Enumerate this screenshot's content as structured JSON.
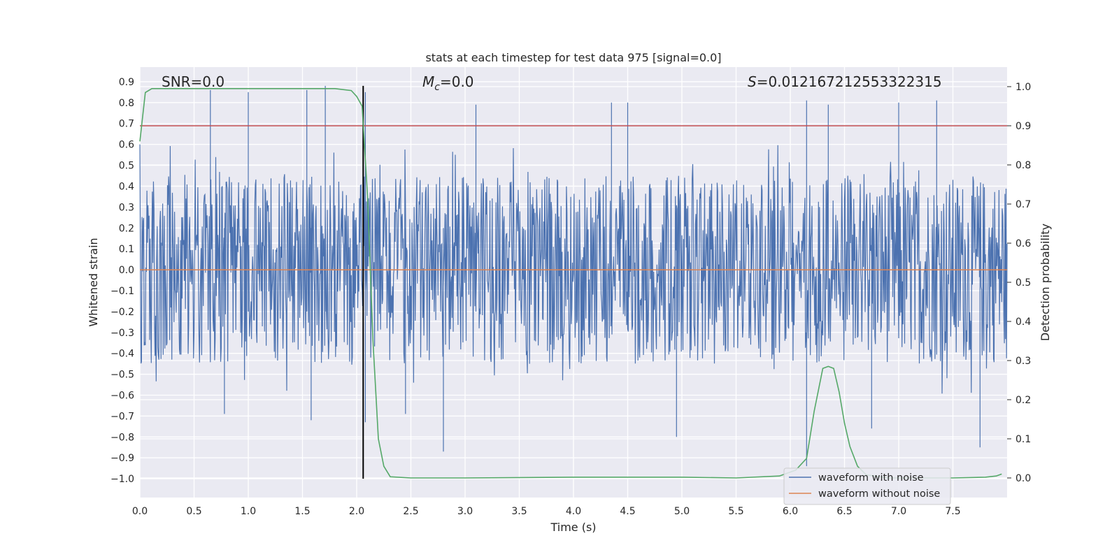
{
  "chart_data": {
    "type": "line",
    "title": "stats at each timestep for test data 975 [signal=0.0]",
    "xlabel": "Time (s)",
    "ylabel_left": "Whitened strain",
    "ylabel_right": "Detection probability",
    "xlim": [
      0.0,
      8.0
    ],
    "ylim_left": [
      -1.09,
      0.97
    ],
    "ylim_right": [
      -0.05,
      1.05
    ],
    "grid": true,
    "x_ticks": [
      "0.0",
      "0.5",
      "1.0",
      "1.5",
      "2.0",
      "2.5",
      "3.0",
      "3.5",
      "4.0",
      "4.5",
      "5.0",
      "5.5",
      "6.0",
      "6.5",
      "7.0",
      "7.5"
    ],
    "y_left_ticks": [
      "0.9",
      "0.8",
      "0.7",
      "0.6",
      "0.5",
      "0.4",
      "0.3",
      "0.2",
      "0.1",
      "0.0",
      "−0.1",
      "−0.2",
      "−0.3",
      "−0.4",
      "−0.5",
      "−0.6",
      "−0.7",
      "−0.8",
      "−0.9",
      "−1.0"
    ],
    "y_right_ticks": [
      "1.0",
      "0.9",
      "0.8",
      "0.7",
      "0.6",
      "0.5",
      "0.4",
      "0.3",
      "0.2",
      "0.1",
      "0.0"
    ],
    "annotations": {
      "snr": "SNR=0.0",
      "mc_symbol": "M",
      "mc_sub": "c",
      "mc_value": "=0.0",
      "s_symbol": "S",
      "s_value": "=0.012167212553322315"
    },
    "legend": {
      "location": "lower-right",
      "entries": [
        "waveform with noise",
        "waveform without noise"
      ]
    },
    "series": [
      {
        "name": "waveform with noise",
        "axis": "left",
        "kind": "noise",
        "color": "#4c72b0",
        "typical_range": [
          -0.45,
          0.45
        ],
        "peak_x": [
          0.65,
          1.0,
          1.54,
          1.71,
          2.08,
          3.1,
          4.35,
          4.5,
          6.15,
          6.35,
          7.0,
          7.35
        ],
        "peak_y": [
          0.86,
          0.85,
          0.86,
          0.88,
          0.85,
          0.79,
          0.8,
          0.8,
          0.81,
          0.79,
          0.8,
          0.81
        ],
        "trough_x": [
          0.78,
          1.58,
          2.08,
          2.45,
          2.8,
          4.95,
          6.15,
          6.75,
          7.75
        ],
        "trough_y": [
          -0.69,
          -0.72,
          -0.73,
          -0.69,
          -0.87,
          -0.8,
          -0.94,
          -0.76,
          -0.85
        ]
      },
      {
        "name": "waveform without noise",
        "axis": "left",
        "color": "#dd8452",
        "x": [
          0.0,
          8.0
        ],
        "y": [
          0.0,
          0.0
        ]
      },
      {
        "name": "detection probability",
        "axis": "right",
        "color": "#55a868",
        "x": [
          0.0,
          0.05,
          0.11,
          0.25,
          0.5,
          1.0,
          1.5,
          1.8,
          1.95,
          2.0,
          2.05,
          2.1,
          2.15,
          2.2,
          2.25,
          2.31,
          2.5,
          3.0,
          4.0,
          5.0,
          5.5,
          5.9,
          6.05,
          6.15,
          6.22,
          6.3,
          6.35,
          6.4,
          6.45,
          6.5,
          6.55,
          6.62,
          6.7,
          6.9,
          7.5,
          7.8,
          7.9,
          7.95
        ],
        "y": [
          0.86,
          0.985,
          0.995,
          0.995,
          0.995,
          0.995,
          0.995,
          0.995,
          0.99,
          0.975,
          0.95,
          0.72,
          0.35,
          0.1,
          0.03,
          0.003,
          0.0,
          0.0,
          0.002,
          0.002,
          0.0,
          0.005,
          0.02,
          0.05,
          0.17,
          0.28,
          0.285,
          0.28,
          0.22,
          0.14,
          0.08,
          0.03,
          0.008,
          0.0,
          0.0,
          0.002,
          0.005,
          0.01
        ]
      },
      {
        "name": "threshold",
        "axis": "right",
        "color": "#c44e52",
        "x": [
          0.0,
          8.0
        ],
        "y": [
          0.9,
          0.9
        ]
      },
      {
        "name": "marker",
        "axis": "left",
        "color": "#000000",
        "x": [
          2.06,
          2.06
        ],
        "y": [
          -1.0,
          0.88
        ]
      }
    ]
  }
}
